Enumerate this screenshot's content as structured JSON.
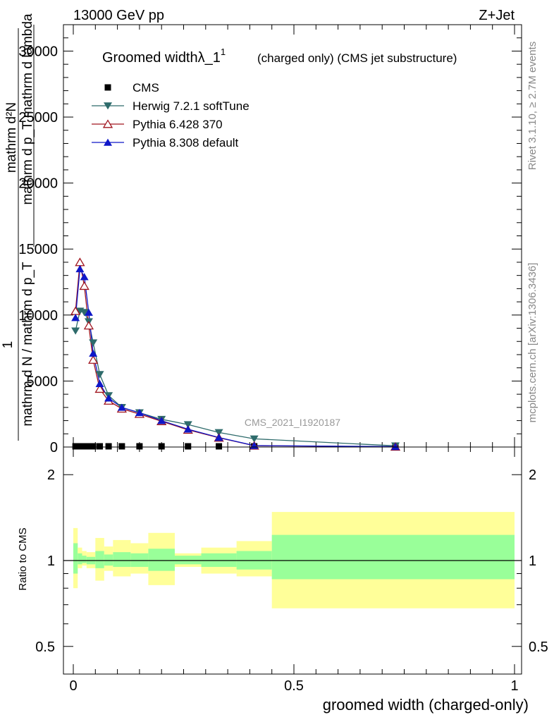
{
  "header": {
    "energy_label": "13000 GeV pp",
    "process_label": "Z+Jet"
  },
  "side_labels": {
    "rivet": "Rivet 3.1.10, ≥ 2.7M events",
    "mcplots": "mcplots.cern.ch [arXiv:1306.3436]"
  },
  "chart_data": [
    {
      "type": "line",
      "panel": "main",
      "title": "Groomed widthλ_1",
      "title_superscript": "1",
      "subtitle": "(charged only) (CMS jet substructure)",
      "ylabel_parts": {
        "one": "1",
        "sigma_frac": "mathrm d²N",
        "den_top": "mathrm d p_T mathrm d lambda",
        "den_bottom": "mathrm d N / mathrm d p_T"
      },
      "watermark": "CMS_2021_I1920187",
      "xlim": [
        0,
        1
      ],
      "ylim": [
        0,
        32000
      ],
      "yticks": [
        "0",
        "5000",
        "10000",
        "15000",
        "20000",
        "25000",
        "30000"
      ],
      "grid": false,
      "legend_position": "top-left",
      "series": [
        {
          "name": "CMS",
          "color": "#000000",
          "marker": "square",
          "x": [
            0.005,
            0.015,
            0.025,
            0.035,
            0.045,
            0.06,
            0.08,
            0.11,
            0.15,
            0.2,
            0.26,
            0.33,
            0.41,
            0.73
          ],
          "y": [
            0,
            0,
            0,
            0,
            0,
            0,
            0,
            0,
            0,
            0,
            0,
            0,
            0,
            0
          ]
        },
        {
          "name": "Herwig 7.2.1 softTune",
          "color": "#2e6b6b",
          "marker": "triangle-down",
          "x": [
            0.005,
            0.015,
            0.025,
            0.035,
            0.045,
            0.06,
            0.08,
            0.11,
            0.15,
            0.2,
            0.26,
            0.33,
            0.41,
            0.73
          ],
          "y": [
            8800,
            10300,
            10200,
            9500,
            7900,
            5500,
            3900,
            3000,
            2600,
            2100,
            1700,
            1100,
            620,
            90
          ]
        },
        {
          "name": "Pythia 6.428 370",
          "color": "#a0141e",
          "marker": "triangle-open",
          "x": [
            0.005,
            0.015,
            0.025,
            0.035,
            0.045,
            0.06,
            0.08,
            0.11,
            0.15,
            0.2,
            0.26,
            0.33,
            0.41,
            0.73
          ],
          "y": [
            10300,
            14000,
            12200,
            9200,
            6600,
            4400,
            3500,
            2900,
            2500,
            1950,
            1300,
            700,
            100,
            20
          ]
        },
        {
          "name": "Pythia 8.308 default",
          "color": "#0f17c8",
          "marker": "triangle-up",
          "x": [
            0.005,
            0.015,
            0.025,
            0.035,
            0.045,
            0.06,
            0.08,
            0.11,
            0.15,
            0.2,
            0.26,
            0.33,
            0.41,
            0.73
          ],
          "y": [
            9800,
            13500,
            12900,
            10200,
            7100,
            4800,
            3700,
            3000,
            2600,
            2000,
            1350,
            720,
            110,
            30
          ]
        }
      ]
    },
    {
      "type": "area",
      "panel": "ratio",
      "ylabel": "Ratio to CMS",
      "xlabel": "groomed width (charged-only)",
      "xlim": [
        0,
        1
      ],
      "ylim": [
        0.4,
        2.5
      ],
      "xticks": [
        "0",
        "0.5",
        "1"
      ],
      "yticks": [
        "0.5",
        "1",
        "2"
      ],
      "scale": "log",
      "reference": 1,
      "bands": {
        "inner_color": "#99ff99",
        "outer_color": "#ffff99",
        "bins": [
          {
            "x0": 0.0,
            "x1": 0.01,
            "inner": [
              0.9,
              1.15
            ],
            "outer": [
              0.8,
              1.3
            ]
          },
          {
            "x0": 0.01,
            "x1": 0.02,
            "inner": [
              0.97,
              1.06
            ],
            "outer": [
              0.94,
              1.11
            ]
          },
          {
            "x0": 0.02,
            "x1": 0.03,
            "inner": [
              0.98,
              1.04
            ],
            "outer": [
              0.96,
              1.08
            ]
          },
          {
            "x0": 0.03,
            "x1": 0.05,
            "inner": [
              0.97,
              1.03
            ],
            "outer": [
              0.94,
              1.07
            ]
          },
          {
            "x0": 0.05,
            "x1": 0.07,
            "inner": [
              0.94,
              1.08
            ],
            "outer": [
              0.85,
              1.2
            ]
          },
          {
            "x0": 0.07,
            "x1": 0.09,
            "inner": [
              0.96,
              1.05
            ],
            "outer": [
              0.92,
              1.12
            ]
          },
          {
            "x0": 0.09,
            "x1": 0.13,
            "inner": [
              0.95,
              1.07
            ],
            "outer": [
              0.88,
              1.18
            ]
          },
          {
            "x0": 0.13,
            "x1": 0.17,
            "inner": [
              0.95,
              1.06
            ],
            "outer": [
              0.9,
              1.15
            ]
          },
          {
            "x0": 0.17,
            "x1": 0.23,
            "inner": [
              0.92,
              1.1
            ],
            "outer": [
              0.82,
              1.25
            ]
          },
          {
            "x0": 0.23,
            "x1": 0.29,
            "inner": [
              0.97,
              1.04
            ],
            "outer": [
              0.95,
              1.06
            ]
          },
          {
            "x0": 0.29,
            "x1": 0.37,
            "inner": [
              0.95,
              1.06
            ],
            "outer": [
              0.9,
              1.11
            ]
          },
          {
            "x0": 0.37,
            "x1": 0.45,
            "inner": [
              0.93,
              1.08
            ],
            "outer": [
              0.88,
              1.17
            ]
          },
          {
            "x0": 0.45,
            "x1": 1.0,
            "inner": [
              0.86,
              1.23
            ],
            "outer": [
              0.68,
              1.48
            ]
          }
        ]
      }
    }
  ]
}
